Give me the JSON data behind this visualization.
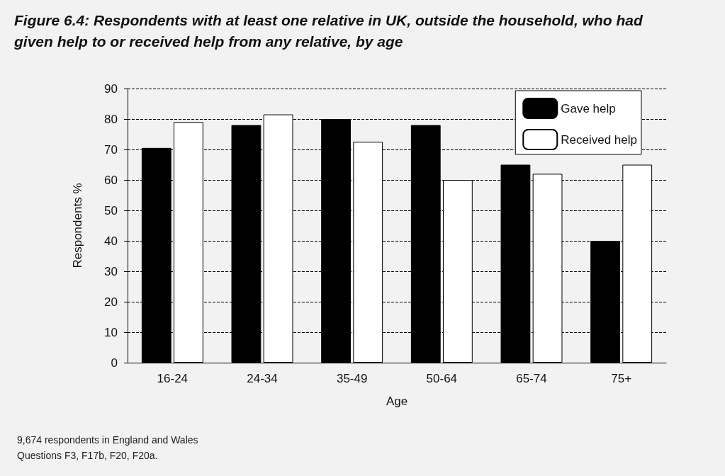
{
  "chart_data": {
    "type": "bar",
    "title": "Figure 6.4: Respondents with at least one relative in UK, outside the household, who had given help to or received help from any relative, by age",
    "xlabel": "Age",
    "ylabel": "Respondents %",
    "categories": [
      "16-24",
      "24-34",
      "35-49",
      "50-64",
      "65-74",
      "75+"
    ],
    "series": [
      {
        "name": "Gave help",
        "color": "#000000",
        "values": [
          70.5,
          78,
          80,
          78,
          65,
          40
        ]
      },
      {
        "name": "Received help",
        "color": "#ffffff",
        "values": [
          79,
          81.5,
          72.5,
          60,
          62,
          65
        ]
      }
    ],
    "ylim": [
      0,
      90
    ],
    "yticks": [
      0,
      10,
      20,
      30,
      40,
      50,
      60,
      70,
      80,
      90
    ],
    "grid": "y",
    "legend": "top right",
    "annotations": [
      "9,674 respondents in England and Wales",
      "Questions F3, F17b, F20, F20a."
    ]
  }
}
